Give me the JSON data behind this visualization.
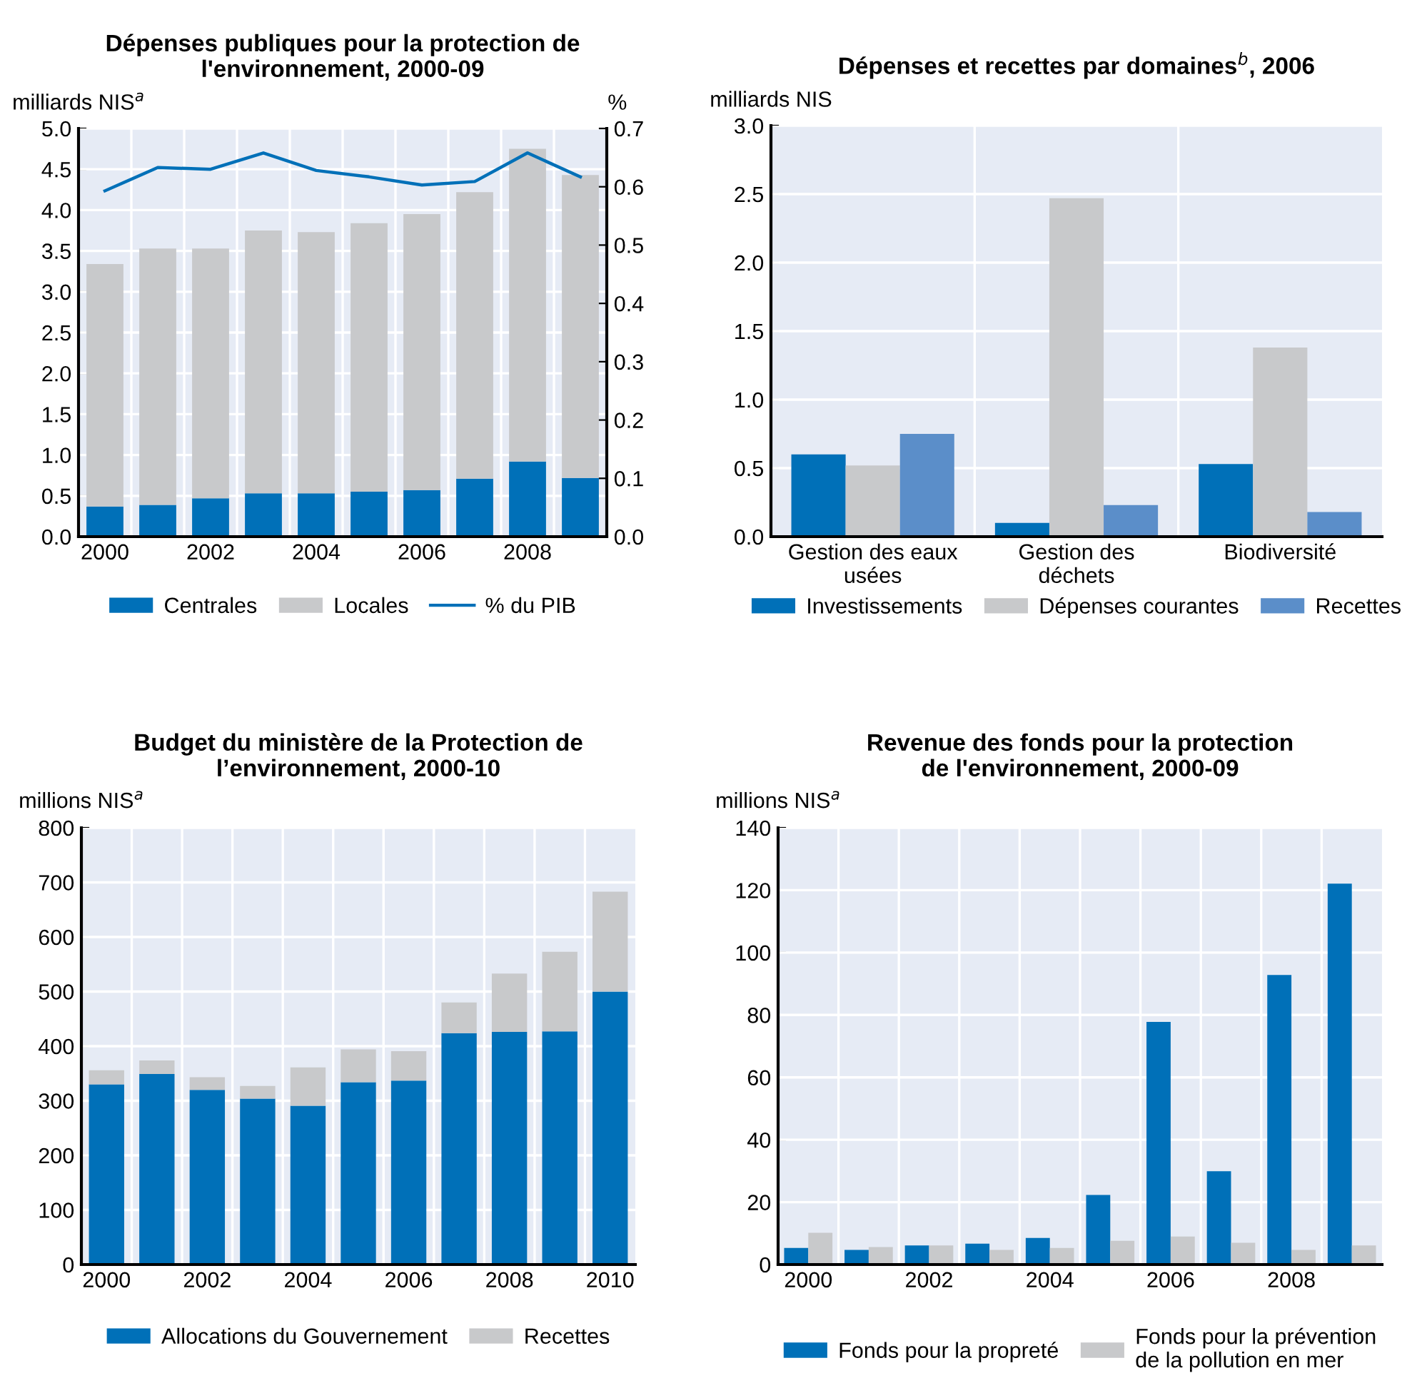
{
  "chart_data": [
    {
      "type": "bar",
      "stacked": true,
      "title": "Dépenses publiques pour la protection de\nl'environnement, 2000-09",
      "ylabel": "milliards NIS$^{a}$",
      "y2label": "%",
      "categories": [
        "2000",
        null,
        "2002",
        null,
        "2004",
        null,
        "2006",
        null,
        "2008",
        null
      ],
      "series": [
        {
          "name": "Centrales",
          "color": "#0070b8",
          "values": [
            0.37,
            0.39,
            0.47,
            0.53,
            0.53,
            0.55,
            0.57,
            0.71,
            0.92,
            0.72
          ]
        },
        {
          "name": "Locales",
          "color": "#c8c9cb",
          "values": [
            2.97,
            3.14,
            3.06,
            3.22,
            3.2,
            3.29,
            3.38,
            3.51,
            3.83,
            3.71
          ]
        },
        {
          "name": "% du PIB",
          "type": "line",
          "axis": "y2",
          "color": "#0070b8",
          "values": [
            0.593,
            0.633,
            0.63,
            0.658,
            0.628,
            0.617,
            0.603,
            0.609,
            0.658,
            0.617
          ]
        }
      ],
      "ylim": [
        0,
        5
      ],
      "yticks": [
        {
          "value": 0,
          "label": "0.0"
        },
        0.5,
        {
          "value": 1,
          "label": "1.0"
        },
        1.5,
        {
          "value": 2,
          "label": "2.0"
        },
        2.5,
        {
          "value": 3,
          "label": "3.0"
        },
        3.5,
        {
          "value": 4,
          "label": "4.0"
        },
        4.5,
        {
          "value": 5,
          "label": "5.0"
        }
      ],
      "y2lim": [
        0,
        0.7
      ],
      "y2ticks": [
        {
          "value": 0,
          "label": "0.0"
        },
        0.1,
        0.2,
        0.3,
        0.4,
        0.5,
        0.6,
        0.7
      ],
      "grid": true,
      "legend": "bottom"
    },
    {
      "type": "bar",
      "title": "Dépenses et recettes par domaines$^{b}$, 2006",
      "ylabel": "milliards NIS",
      "categories": [
        "Gestion des eaux\nusées",
        "Gestion des\ndéchets",
        "Biodiversité"
      ],
      "series": [
        {
          "name": "Investissements",
          "color": "#0070b8",
          "values": [
            0.6,
            0.1,
            0.53
          ]
        },
        {
          "name": "Dépenses courantes",
          "color": "#c8c9cb",
          "values": [
            0.52,
            2.47,
            1.38
          ]
        },
        {
          "name": "Recettes",
          "color": "#5b8ec9",
          "values": [
            0.75,
            0.23,
            0.18
          ]
        }
      ],
      "ylim": [
        0,
        3
      ],
      "yticks": [
        {
          "value": 0,
          "label": "0.0"
        },
        0.5,
        {
          "value": 1,
          "label": "1.0"
        },
        1.5,
        {
          "value": 2,
          "label": "2.0"
        },
        2.5,
        {
          "value": 3,
          "label": "3.0"
        }
      ],
      "grid": true,
      "legend": "bottom"
    },
    {
      "type": "bar",
      "stacked": true,
      "title": "Budget du ministère de la Protection de\nl’environnement, 2000-10",
      "ylabel": "millions NIS$^{a}$",
      "categories": [
        "2000",
        null,
        "2002",
        null,
        "2004",
        null,
        "2006",
        null,
        "2008",
        null,
        "2010"
      ],
      "series": [
        {
          "name": "Allocations du Gouvernement",
          "color": "#0070b8",
          "values": [
            330,
            349,
            320,
            304,
            291,
            334,
            337,
            424,
            426,
            427,
            500
          ]
        },
        {
          "name": "Recettes",
          "color": "#c8c9cb",
          "values": [
            26,
            25,
            23,
            23,
            70,
            60,
            54,
            56,
            107,
            146,
            183
          ]
        }
      ],
      "ylim": [
        0,
        800
      ],
      "yticks": [
        0,
        100,
        200,
        300,
        400,
        500,
        600,
        700,
        800
      ],
      "grid": true,
      "legend": "bottom"
    },
    {
      "type": "bar",
      "title": "Revenue des fonds pour la protection\nde l'environnement, 2000-09",
      "ylabel": "millions NIS$^{a}$",
      "categories": [
        "2000",
        null,
        "2002",
        null,
        "2004",
        null,
        "2006",
        null,
        "2008",
        null
      ],
      "series": [
        {
          "name": "Fonds pour la propreté",
          "color": "#0070b8",
          "values": [
            5.3,
            4.7,
            6.1,
            6.7,
            8.5,
            22.3,
            77.8,
            29.9,
            92.8,
            122.1
          ]
        },
        {
          "name": "Fonds pour la prévention\nde la pollution en mer",
          "color": "#c8c9cb",
          "values": [
            10.2,
            5.6,
            6.1,
            4.7,
            5.3,
            7.6,
            9.0,
            7.0,
            4.7,
            6.1
          ]
        }
      ],
      "ylim": [
        0,
        140
      ],
      "yticks": [
        0,
        20,
        40,
        60,
        80,
        100,
        120,
        140
      ],
      "grid": true,
      "legend": "bottom"
    }
  ]
}
